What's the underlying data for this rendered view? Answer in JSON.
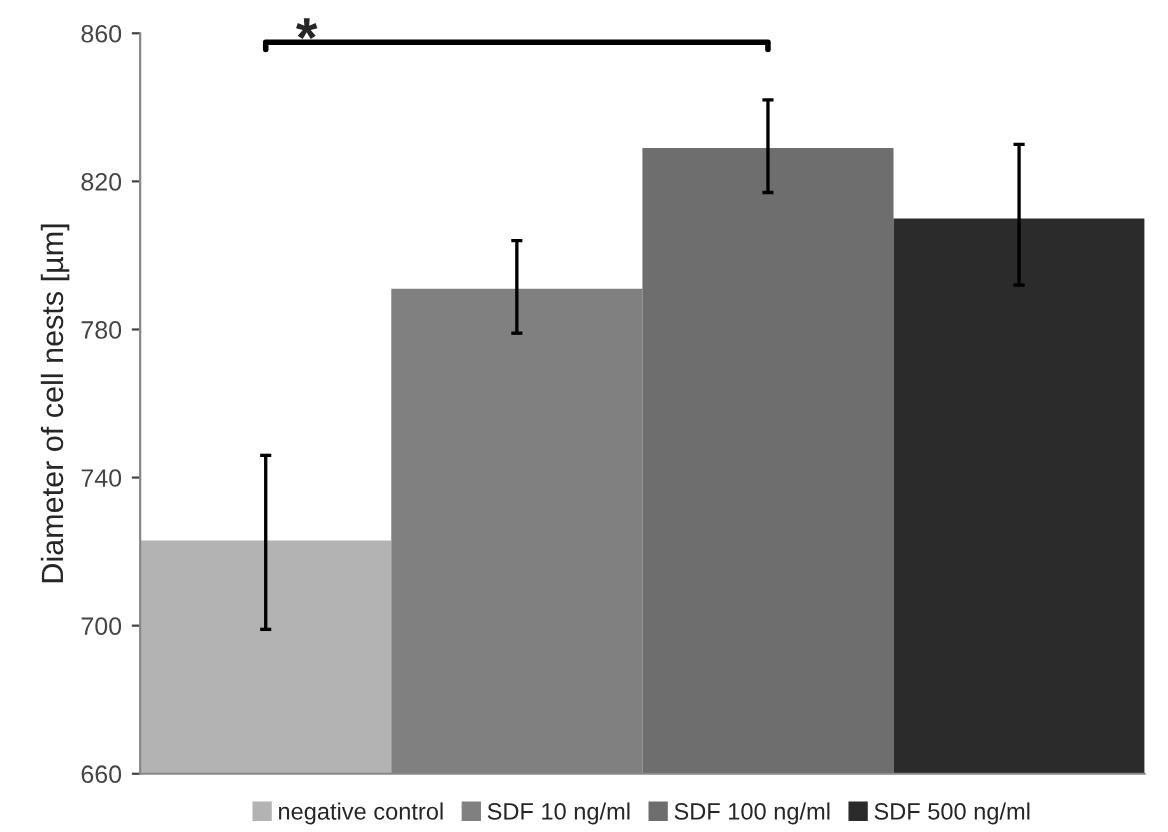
{
  "chart_data": {
    "type": "bar",
    "ylabel": "Diameter of cell nests [µm]",
    "categories": [
      null
    ],
    "series": [
      {
        "name": "negative control",
        "color": "#b3b3b3",
        "values": [
          723
        ],
        "errors": [
          [
            699,
            746
          ]
        ]
      },
      {
        "name": "SDF 10 ng/ml",
        "color": "#808080",
        "values": [
          791
        ],
        "errors": [
          [
            779,
            804
          ]
        ]
      },
      {
        "name": "SDF 100 ng/ml",
        "color": "#6e6e6e",
        "values": [
          829
        ],
        "errors": [
          [
            817,
            842
          ]
        ]
      },
      {
        "name": "SDF 500 ng/ml",
        "color": "#2b2b2b",
        "values": [
          810
        ],
        "errors": [
          [
            792,
            830
          ]
        ]
      }
    ],
    "ylim": [
      660,
      860
    ],
    "yticks": [
      660,
      700,
      740,
      780,
      820,
      860
    ],
    "grid": false,
    "legend": "bottom",
    "annotations": [
      "*"
    ]
  }
}
